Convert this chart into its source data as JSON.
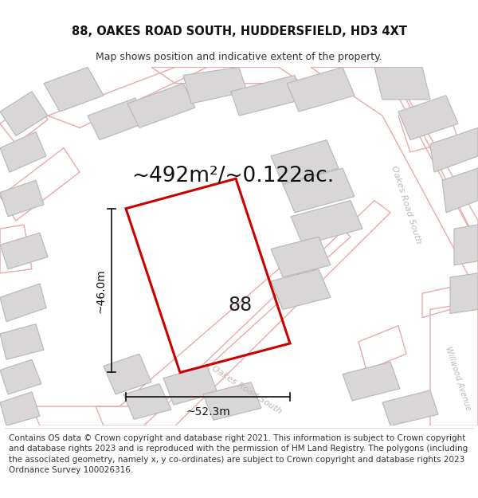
{
  "title_line1": "88, OAKES ROAD SOUTH, HUDDERSFIELD, HD3 4XT",
  "title_line2": "Map shows position and indicative extent of the property.",
  "area_label": "~492m²/~0.122ac.",
  "property_number": "88",
  "width_label": "~52.3m",
  "height_label": "~46.0m",
  "footer_text": "Contains OS data © Crown copyright and database right 2021. This information is subject to Crown copyright and database rights 2023 and is reproduced with the permission of HM Land Registry. The polygons (including the associated geometry, namely x, y co-ordinates) are subject to Crown copyright and database rights 2023 Ordnance Survey 100026316.",
  "bg_color": "#f2f0f0",
  "road_stroke": "#e8aaaa",
  "building_fill": "#d8d6d6",
  "building_stroke": "#b8b6b6",
  "property_stroke": "#cc0000",
  "dim_color": "#111111",
  "road_label_color": "#c0b8b8",
  "title_fontsize": 10.5,
  "subtitle_fontsize": 9.0,
  "area_fontsize": 19,
  "number_fontsize": 17,
  "dim_fontsize": 10,
  "footer_fontsize": 7.5,
  "road_lw": 1.0,
  "building_lw": 0.8,
  "property_lw": 2.2
}
